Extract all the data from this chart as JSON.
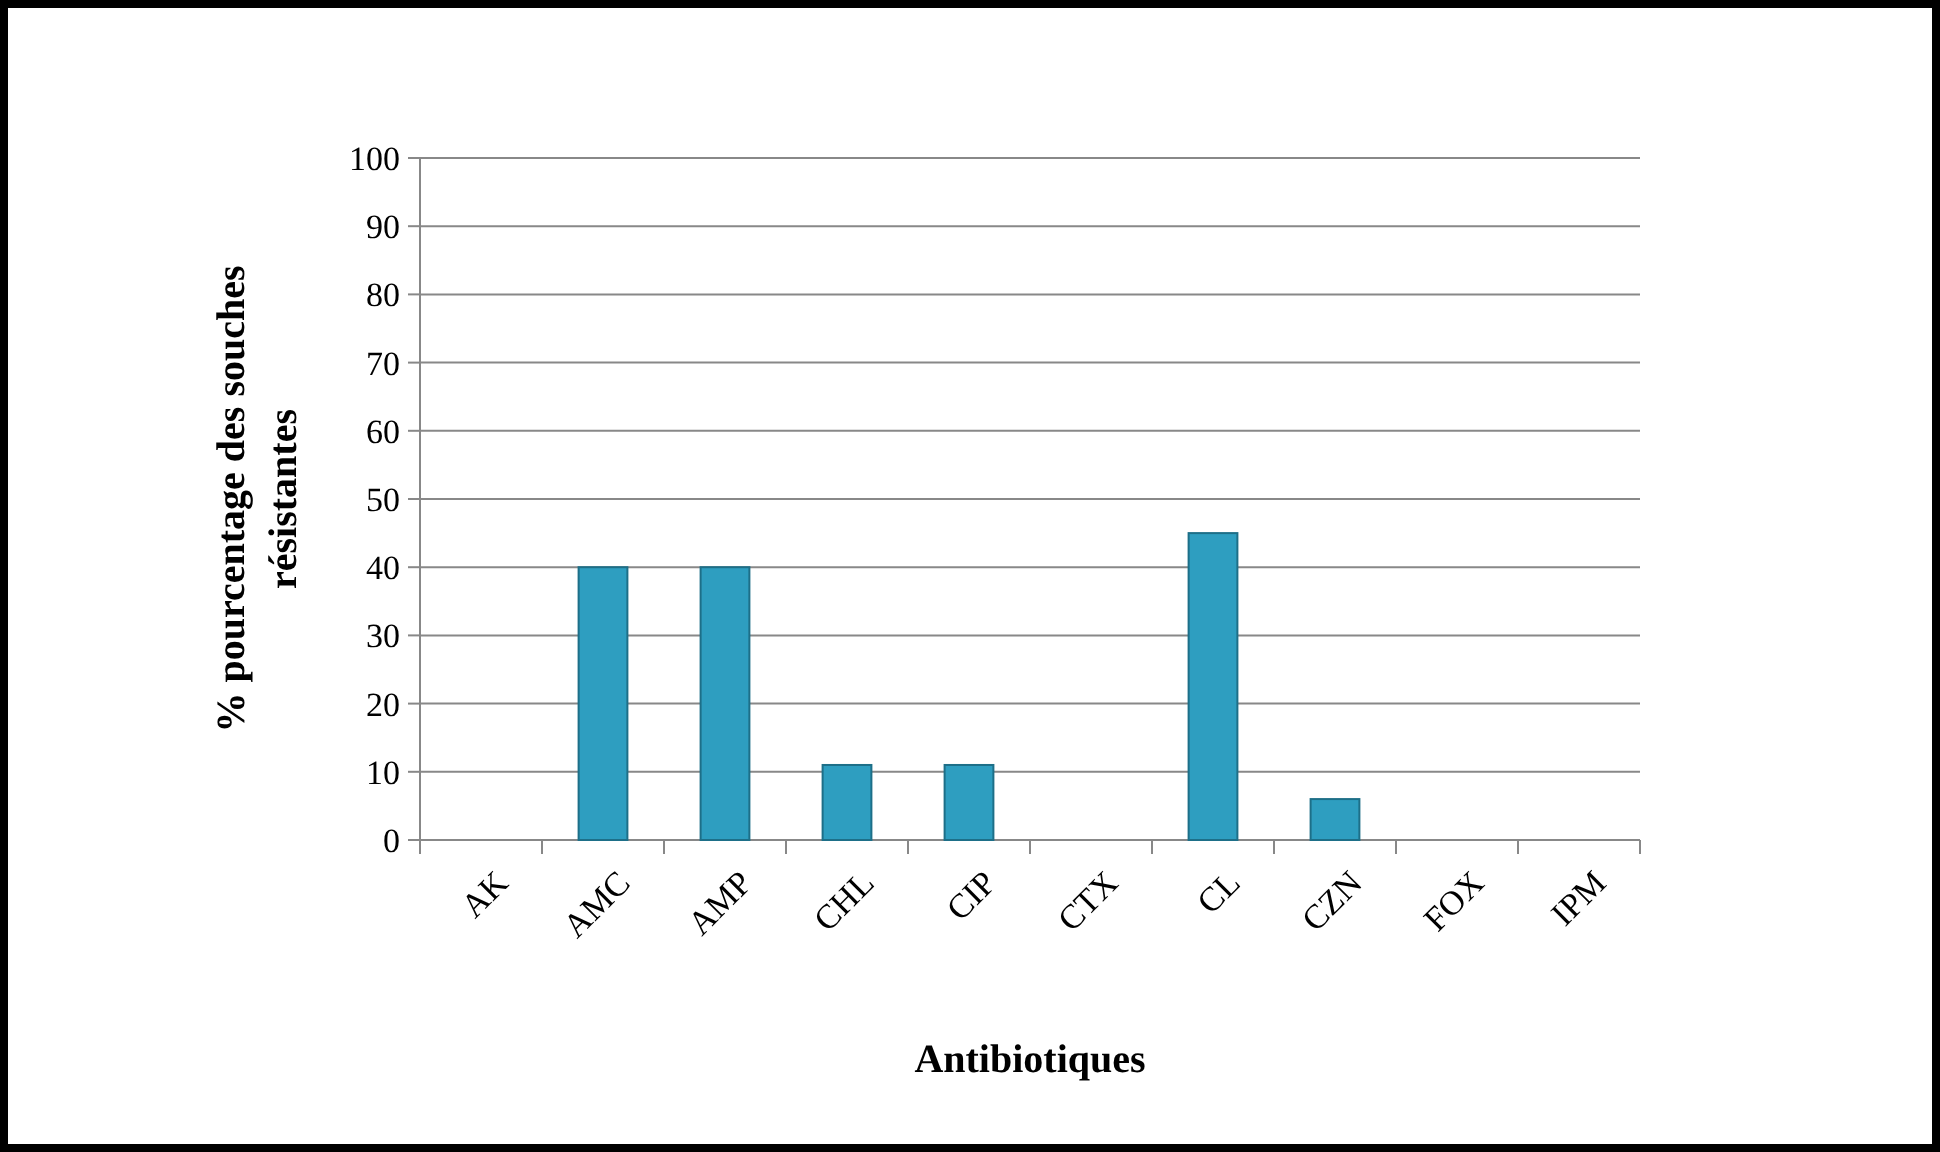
{
  "chart_data": {
    "type": "bar",
    "xlabel": "Antibiotiques",
    "ylabel": "% pourcentage des souches\nrésistantes",
    "categories": [
      "AK",
      "AMC",
      "AMP",
      "CHL",
      "CIP",
      "CTX",
      "CL",
      "CZN",
      "FOX",
      "IPM"
    ],
    "values": [
      0,
      40,
      40,
      11,
      11,
      0,
      45,
      6,
      0,
      0
    ],
    "color": "#2e9ec0",
    "ylim": [
      0,
      100
    ],
    "yticks": [
      0,
      10,
      20,
      30,
      40,
      50,
      60,
      70,
      80,
      90,
      100
    ],
    "grid": "y"
  }
}
